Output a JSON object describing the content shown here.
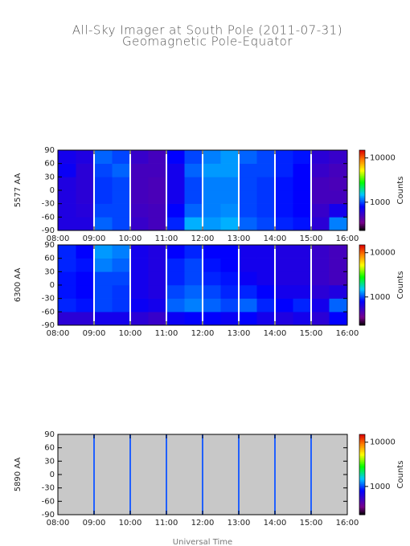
{
  "chart_data": [
    {
      "type": "heatmap",
      "title": "All-Sky Imager at South Pole (2011-07-31)",
      "subtitle": "Geomagnetic Pole-Equator",
      "ylabel": "5577 AA",
      "colorbar_label": "Counts",
      "log_color": true,
      "clim": [
        230,
        15000
      ],
      "cticks": [
        1000,
        10000
      ],
      "separator_color": "#ffffff",
      "x": [
        8,
        8.5,
        9,
        9.5,
        10,
        10.5,
        11,
        11.5,
        12,
        12.5,
        13,
        13.5,
        14,
        14.5,
        15,
        15.5,
        16
      ],
      "y": [
        -90,
        -60,
        -30,
        0,
        30,
        60,
        90
      ],
      "xlim": [
        8,
        16
      ],
      "xticks": [
        {
          "value": 8,
          "label": "08:00"
        },
        {
          "value": 9,
          "label": "09:00"
        },
        {
          "value": 10,
          "label": "10:00"
        },
        {
          "value": 11,
          "label": "11:00"
        },
        {
          "value": 12,
          "label": "12:00"
        },
        {
          "value": 13,
          "label": "13:00"
        },
        {
          "value": 14,
          "label": "14:00"
        },
        {
          "value": 15,
          "label": "15:00"
        },
        {
          "value": 16,
          "label": "16:00"
        }
      ],
      "ylim": [
        -90,
        90
      ],
      "yticks": [
        -90,
        -60,
        -30,
        0,
        30,
        60,
        90
      ],
      "values": [
        [
          650,
          650,
          1100,
          1000,
          550,
          500,
          900,
          1400,
          1300,
          1400,
          1100,
          1000,
          900,
          850,
          600,
          1200
        ],
        [
          650,
          620,
          1000,
          1000,
          520,
          500,
          800,
          1100,
          1200,
          1250,
          1000,
          950,
          850,
          800,
          550,
          700
        ],
        [
          650,
          600,
          950,
          1000,
          500,
          480,
          700,
          1000,
          1200,
          1200,
          1000,
          950,
          850,
          800,
          500,
          500
        ],
        [
          650,
          600,
          950,
          1000,
          500,
          480,
          700,
          1000,
          1200,
          1200,
          1000,
          950,
          850,
          800,
          500,
          480
        ],
        [
          750,
          600,
          1000,
          1100,
          500,
          500,
          700,
          1100,
          1300,
          1300,
          1000,
          1000,
          900,
          800,
          550,
          500
        ],
        [
          700,
          650,
          1100,
          1000,
          550,
          500,
          800,
          1000,
          1200,
          1300,
          1100,
          1000,
          900,
          850,
          600,
          550
        ]
      ]
    },
    {
      "type": "heatmap",
      "ylabel": "6300 AA",
      "colorbar_label": "Counts",
      "log_color": true,
      "clim": [
        230,
        15000
      ],
      "cticks": [
        1000,
        10000
      ],
      "separator_color": "#ffffff",
      "x": [
        8,
        8.5,
        9,
        9.5,
        10,
        10.5,
        11,
        11.5,
        12,
        12.5,
        13,
        13.5,
        14,
        14.5,
        15,
        15.5,
        16
      ],
      "y": [
        -90,
        -60,
        -30,
        0,
        30,
        60,
        90
      ],
      "xlim": [
        8,
        16
      ],
      "xticks": [
        {
          "value": 8,
          "label": "08:00"
        },
        {
          "value": 9,
          "label": "09:00"
        },
        {
          "value": 10,
          "label": "10:00"
        },
        {
          "value": 11,
          "label": "11:00"
        },
        {
          "value": 12,
          "label": "12:00"
        },
        {
          "value": 13,
          "label": "13:00"
        },
        {
          "value": 14,
          "label": "14:00"
        },
        {
          "value": 15,
          "label": "15:00"
        },
        {
          "value": 16,
          "label": "16:00"
        }
      ],
      "ylim": [
        -90,
        90
      ],
      "yticks": [
        -90,
        -60,
        -30,
        0,
        30,
        60,
        90
      ],
      "values": [
        [
          600,
          600,
          700,
          700,
          600,
          550,
          750,
          800,
          800,
          750,
          800,
          700,
          650,
          700,
          600,
          800
        ],
        [
          900,
          850,
          1000,
          950,
          750,
          700,
          1100,
          1200,
          1100,
          1000,
          1100,
          900,
          800,
          900,
          700,
          1100
        ],
        [
          850,
          800,
          1000,
          950,
          700,
          650,
          1000,
          1100,
          1000,
          900,
          900,
          800,
          700,
          700,
          600,
          650
        ],
        [
          850,
          800,
          1000,
          1000,
          700,
          650,
          900,
          1000,
          900,
          850,
          750,
          700,
          650,
          650,
          550,
          500
        ],
        [
          900,
          850,
          1200,
          1100,
          700,
          650,
          900,
          1000,
          850,
          800,
          700,
          700,
          650,
          650,
          550,
          500
        ],
        [
          900,
          800,
          1300,
          1200,
          700,
          650,
          800,
          900,
          800,
          800,
          700,
          700,
          650,
          650,
          550,
          500
        ]
      ]
    },
    {
      "type": "heatmap",
      "ylabel": "5890 AA",
      "colorbar_label": "Counts",
      "log_color": true,
      "clim": [
        230,
        15000
      ],
      "cticks": [
        1000,
        10000
      ],
      "separator_color": "#2060ff",
      "xlabel": "Universal Time",
      "x": [
        8,
        8.5,
        9,
        9.5,
        10,
        10.5,
        11,
        11.5,
        12,
        12.5,
        13,
        13.5,
        14,
        14.5,
        15,
        15.5,
        16
      ],
      "y": [
        -90,
        -60,
        -30,
        0,
        30,
        60,
        90
      ],
      "xlim": [
        8,
        16
      ],
      "xticks": [
        {
          "value": 8,
          "label": "08:00"
        },
        {
          "value": 9,
          "label": "09:00"
        },
        {
          "value": 10,
          "label": "10:00"
        },
        {
          "value": 11,
          "label": "11:00"
        },
        {
          "value": 12,
          "label": "12:00"
        },
        {
          "value": 13,
          "label": "13:00"
        },
        {
          "value": 14,
          "label": "14:00"
        },
        {
          "value": 15,
          "label": "15:00"
        },
        {
          "value": 16,
          "label": "16:00"
        }
      ],
      "ylim": [
        -90,
        90
      ],
      "yticks": [
        -90,
        -60,
        -30,
        0,
        30,
        60,
        90
      ],
      "values": [
        [
          null,
          null,
          null,
          null,
          null,
          null,
          null,
          null,
          null,
          null,
          null,
          null,
          null,
          null,
          null,
          null
        ],
        [
          null,
          null,
          null,
          null,
          null,
          null,
          null,
          null,
          null,
          null,
          null,
          null,
          null,
          null,
          null,
          null
        ],
        [
          null,
          null,
          null,
          null,
          null,
          null,
          null,
          null,
          null,
          null,
          null,
          null,
          null,
          null,
          null,
          null
        ],
        [
          null,
          null,
          null,
          null,
          null,
          null,
          null,
          null,
          null,
          null,
          null,
          null,
          null,
          null,
          null,
          null
        ],
        [
          null,
          null,
          null,
          null,
          null,
          null,
          null,
          null,
          null,
          null,
          null,
          null,
          null,
          null,
          null,
          null
        ],
        [
          null,
          null,
          null,
          null,
          null,
          null,
          null,
          null,
          null,
          null,
          null,
          null,
          null,
          null,
          null,
          null
        ]
      ]
    }
  ]
}
